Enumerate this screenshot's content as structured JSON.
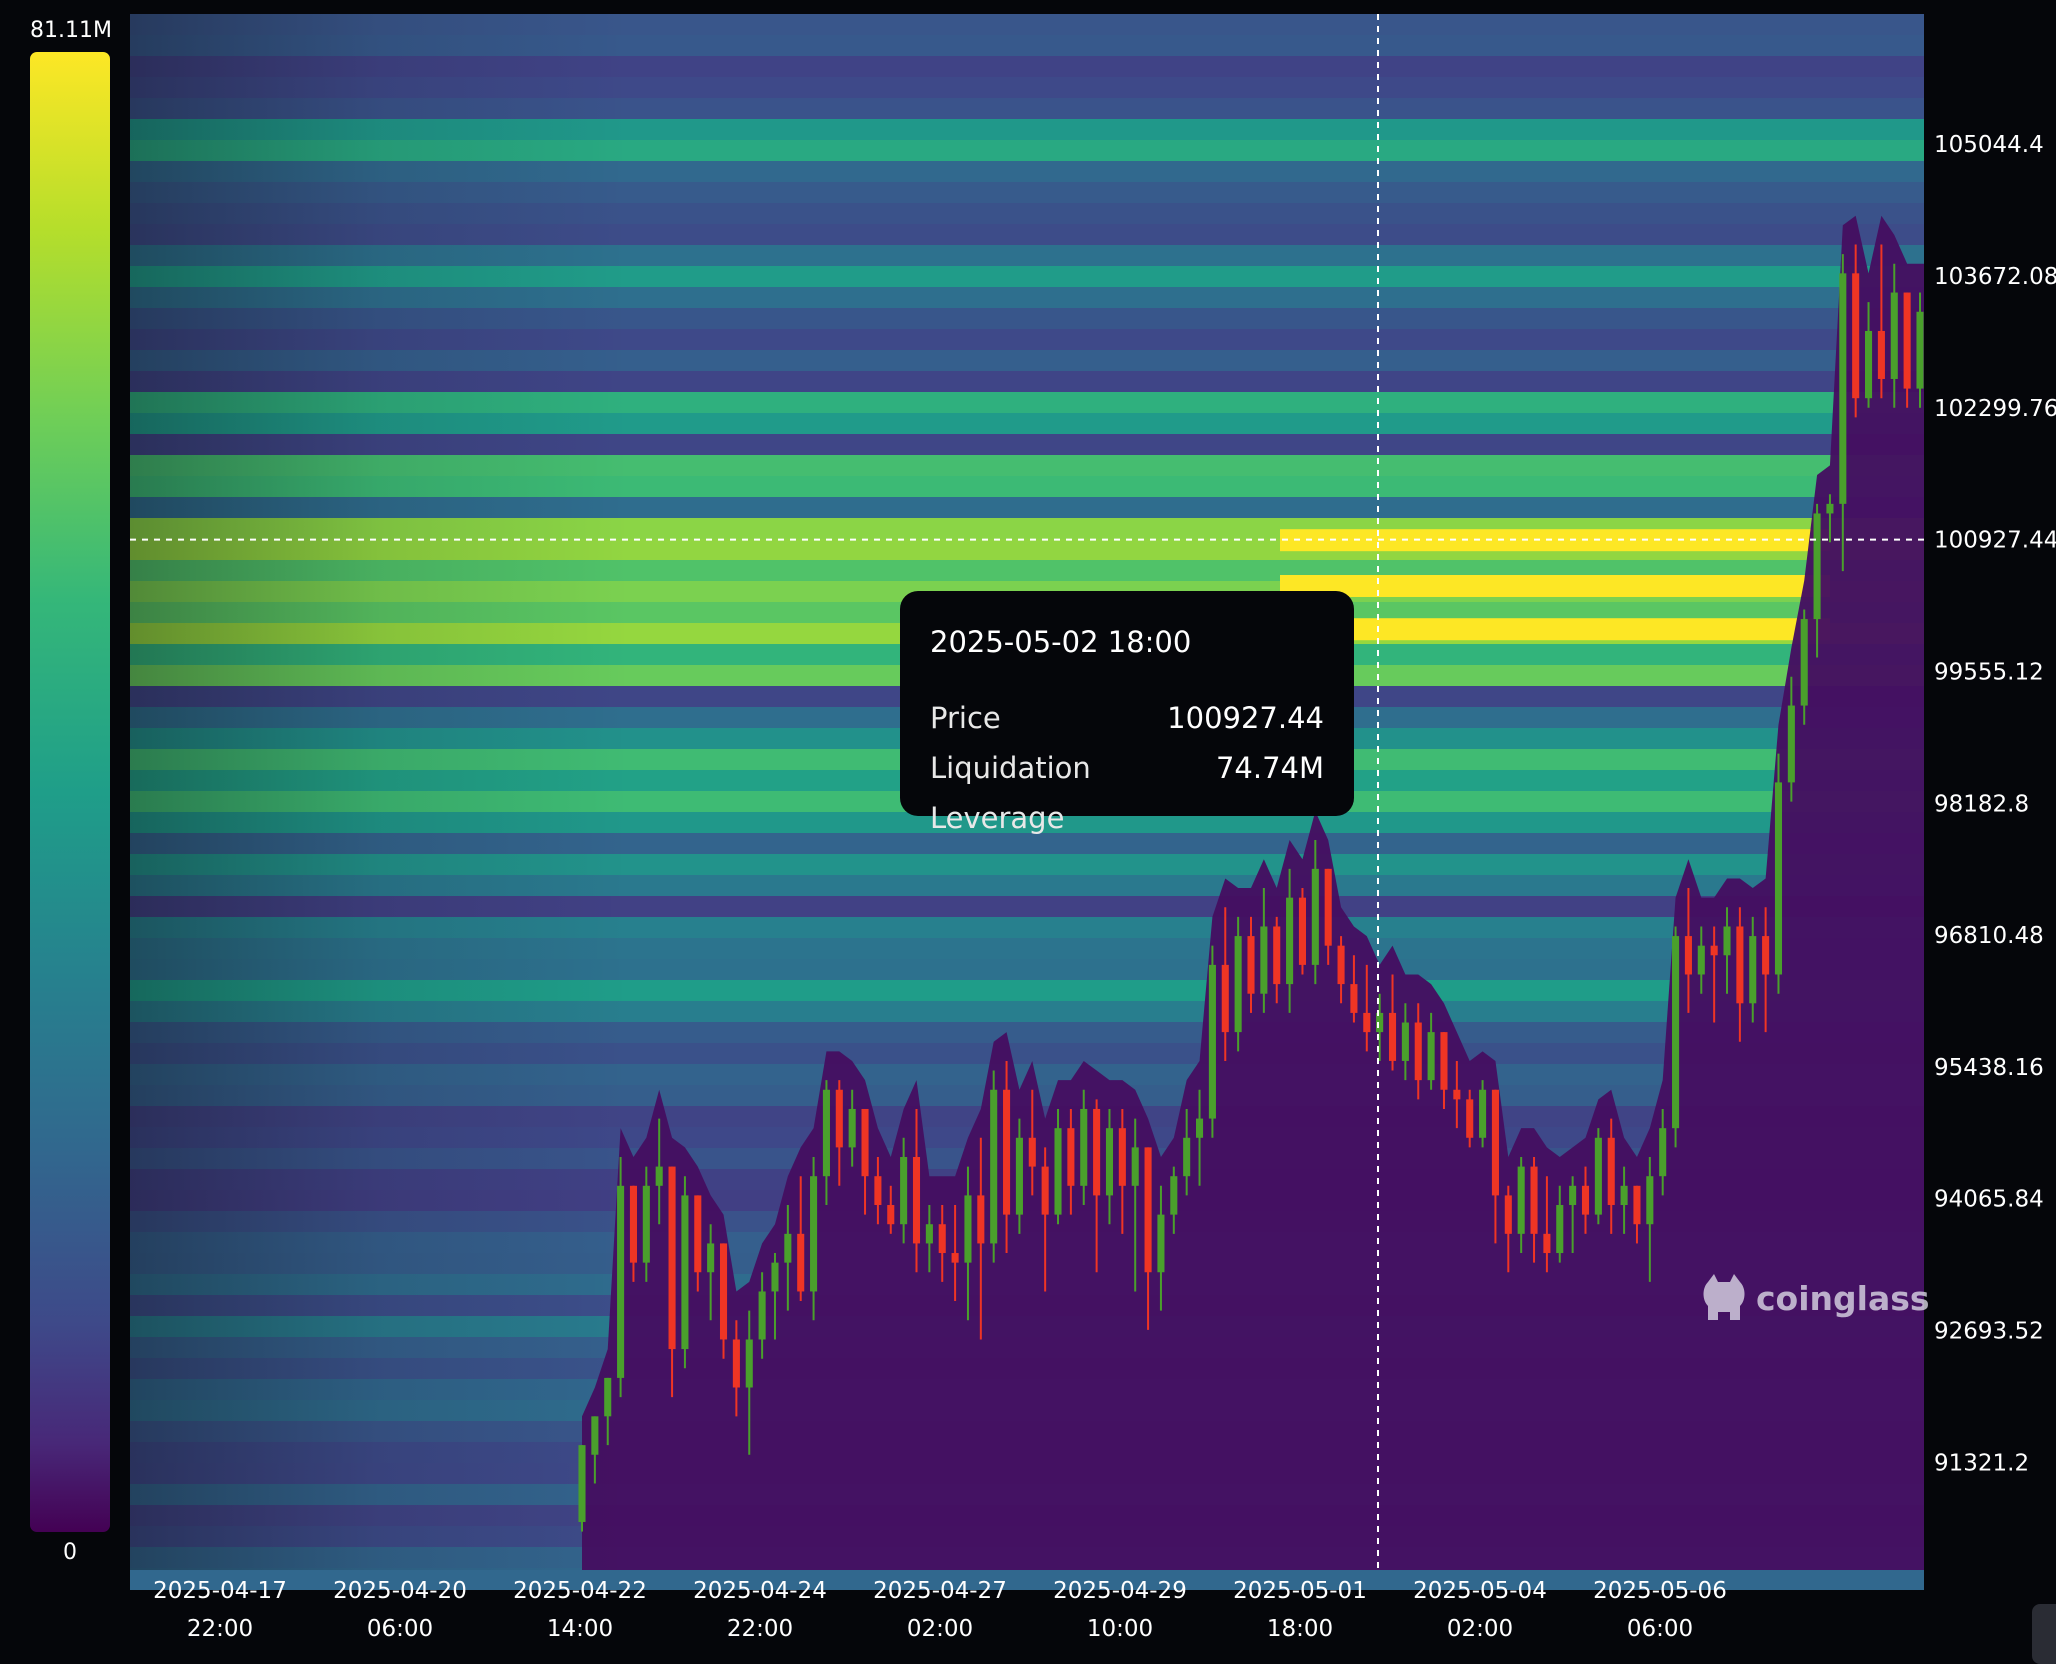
{
  "legend": {
    "max_label": "81.11M",
    "min_label": "0",
    "colors": [
      "#440154",
      "#482878",
      "#3e4989",
      "#31688e",
      "#26828e",
      "#1f9e89",
      "#35b779",
      "#6ece58",
      "#b5de2b",
      "#fde725"
    ]
  },
  "tooltip": {
    "time": "2025-05-02 18:00",
    "price_label": "Price",
    "price_value": "100927.44",
    "leverage_label": "Liquidation Leverage",
    "leverage_value": "74.74M"
  },
  "watermark": {
    "text": "coinglass",
    "icon": "coinglass-logo-icon"
  },
  "chart_data": {
    "type": "heatmap",
    "xlabel": "",
    "ylabel": "",
    "x_tick_labels": [
      [
        "2025-04-17",
        "22:00"
      ],
      [
        "2025-04-20",
        "06:00"
      ],
      [
        "2025-04-22",
        "14:00"
      ],
      [
        "2025-04-24",
        "22:00"
      ],
      [
        "2025-04-27",
        "02:00"
      ],
      [
        "2025-04-29",
        "10:00"
      ],
      [
        "2025-05-01",
        "18:00"
      ],
      [
        "2025-05-04",
        "02:00"
      ],
      [
        "2025-05-06",
        "06:00"
      ]
    ],
    "y_tick_labels": [
      "105044.4",
      "103672.08",
      "102299.76",
      "100927.44",
      "99555.12",
      "98182.8",
      "96810.48",
      "95438.16",
      "94065.84",
      "92693.52",
      "91321.2"
    ],
    "ylim": [
      90200,
      106400
    ],
    "color_scale": {
      "min": 0,
      "max": 81110000,
      "unit": "USD",
      "colormap": "viridis"
    },
    "crosshair": {
      "time": "2025-05-02 18:00",
      "price": 100927.44
    },
    "heat_bands": [
      {
        "price": 105044,
        "level": 0.66
      },
      {
        "price": 103672,
        "level": 0.55
      },
      {
        "price": 102300,
        "level": 0.68
      },
      {
        "price": 101600,
        "level": 0.78
      },
      {
        "price": 100927,
        "level": 0.92
      },
      {
        "price": 100450,
        "level": 0.85
      },
      {
        "price": 100000,
        "level": 0.88
      },
      {
        "price": 99555,
        "level": 0.8
      },
      {
        "price": 98600,
        "level": 0.72
      },
      {
        "price": 98182,
        "level": 0.7
      },
      {
        "price": 97500,
        "level": 0.55
      },
      {
        "price": 96810,
        "level": 0.5
      },
      {
        "price": 96200,
        "level": 0.58
      },
      {
        "price": 92693,
        "level": 0.45
      },
      {
        "price": 91800,
        "level": 0.4
      }
    ],
    "series": [
      {
        "type": "candlestick",
        "values": [
          [
            90700,
            91500,
            90600,
            91500
          ],
          [
            91400,
            91800,
            91100,
            91800
          ],
          [
            91800,
            92200,
            91500,
            92200
          ],
          [
            92200,
            94500,
            92000,
            94200
          ],
          [
            94200,
            94200,
            93200,
            93400
          ],
          [
            93400,
            94400,
            93200,
            94200
          ],
          [
            94200,
            94900,
            93800,
            94400
          ],
          [
            94400,
            94400,
            92000,
            92500
          ],
          [
            92500,
            94300,
            92300,
            94100
          ],
          [
            94100,
            94100,
            93100,
            93300
          ],
          [
            93300,
            93800,
            92800,
            93600
          ],
          [
            93600,
            93600,
            92400,
            92600
          ],
          [
            92600,
            92800,
            91800,
            92100
          ],
          [
            92100,
            92900,
            91400,
            92600
          ],
          [
            92600,
            93300,
            92400,
            93100
          ],
          [
            93100,
            93500,
            92600,
            93400
          ],
          [
            93400,
            94000,
            92900,
            93700
          ],
          [
            93700,
            94300,
            93000,
            93100
          ],
          [
            93100,
            94500,
            92800,
            94300
          ],
          [
            94300,
            95300,
            94000,
            95200
          ],
          [
            95200,
            95300,
            94200,
            94600
          ],
          [
            94600,
            95200,
            94400,
            95000
          ],
          [
            95000,
            95000,
            93900,
            94300
          ],
          [
            94300,
            94500,
            93800,
            94000
          ],
          [
            94000,
            94200,
            93700,
            93800
          ],
          [
            93800,
            94700,
            93600,
            94500
          ],
          [
            94500,
            95000,
            93300,
            93600
          ],
          [
            93600,
            94000,
            93300,
            93800
          ],
          [
            93800,
            94000,
            93200,
            93500
          ],
          [
            93500,
            94000,
            93000,
            93400
          ],
          [
            93400,
            94400,
            92800,
            94100
          ],
          [
            94100,
            94700,
            92600,
            93600
          ],
          [
            93600,
            95400,
            93400,
            95200
          ],
          [
            95200,
            95500,
            93500,
            93900
          ],
          [
            93900,
            94900,
            93700,
            94700
          ],
          [
            94700,
            95200,
            94100,
            94400
          ],
          [
            94400,
            94600,
            93100,
            93900
          ],
          [
            93900,
            95000,
            93800,
            94800
          ],
          [
            94800,
            95000,
            93900,
            94200
          ],
          [
            94200,
            95200,
            94000,
            95000
          ],
          [
            95000,
            95100,
            93300,
            94100
          ],
          [
            94100,
            95000,
            93800,
            94800
          ],
          [
            94800,
            95000,
            93700,
            94200
          ],
          [
            94200,
            94900,
            93100,
            94600
          ],
          [
            94600,
            94600,
            92700,
            93300
          ],
          [
            93300,
            94200,
            92900,
            93900
          ],
          [
            93900,
            94400,
            93700,
            94300
          ],
          [
            94300,
            95000,
            94100,
            94700
          ],
          [
            94700,
            95200,
            94200,
            94900
          ],
          [
            94900,
            96700,
            94700,
            96500
          ],
          [
            96500,
            97100,
            95500,
            95800
          ],
          [
            95800,
            97000,
            95600,
            96800
          ],
          [
            96800,
            97000,
            96000,
            96200
          ],
          [
            96200,
            97300,
            96000,
            96900
          ],
          [
            96900,
            97000,
            96100,
            96300
          ],
          [
            96300,
            97500,
            96000,
            97200
          ],
          [
            97200,
            97300,
            96400,
            96500
          ],
          [
            96500,
            97800,
            96300,
            97500
          ],
          [
            97500,
            97500,
            96500,
            96700
          ],
          [
            96700,
            96800,
            96100,
            96300
          ],
          [
            96300,
            96600,
            95900,
            96000
          ],
          [
            96000,
            96500,
            95600,
            95800
          ],
          [
            95800,
            96200,
            95500,
            96000
          ],
          [
            96000,
            96400,
            95400,
            95500
          ],
          [
            95500,
            96100,
            95300,
            95900
          ],
          [
            95900,
            96100,
            95100,
            95300
          ],
          [
            95300,
            96000,
            95200,
            95800
          ],
          [
            95800,
            95800,
            95000,
            95200
          ],
          [
            95200,
            95500,
            94800,
            95100
          ],
          [
            95100,
            95200,
            94600,
            94700
          ],
          [
            94700,
            95300,
            94600,
            95200
          ],
          [
            95200,
            95200,
            93600,
            94100
          ],
          [
            94100,
            94200,
            93300,
            93700
          ],
          [
            93700,
            94500,
            93500,
            94400
          ],
          [
            94400,
            94500,
            93400,
            93700
          ],
          [
            93700,
            94300,
            93300,
            93500
          ],
          [
            93500,
            94200,
            93400,
            94000
          ],
          [
            94000,
            94300,
            93500,
            94200
          ],
          [
            94200,
            94400,
            93700,
            93900
          ],
          [
            93900,
            94800,
            93800,
            94700
          ],
          [
            94700,
            94900,
            93700,
            94000
          ],
          [
            94000,
            94400,
            93700,
            94200
          ],
          [
            94200,
            94200,
            93600,
            93800
          ],
          [
            93800,
            94500,
            93200,
            94300
          ],
          [
            94300,
            95000,
            94100,
            94800
          ],
          [
            94800,
            96900,
            94600,
            96800
          ],
          [
            96800,
            97300,
            96000,
            96400
          ],
          [
            96400,
            96900,
            96200,
            96700
          ],
          [
            96700,
            96900,
            95900,
            96600
          ],
          [
            96600,
            97100,
            96200,
            96900
          ],
          [
            96900,
            97100,
            95700,
            96100
          ],
          [
            96100,
            97000,
            95900,
            96800
          ],
          [
            96800,
            97100,
            95800,
            96400
          ],
          [
            96400,
            98700,
            96200,
            98400
          ],
          [
            98400,
            99500,
            98200,
            99200
          ],
          [
            99200,
            100200,
            99000,
            100100
          ],
          [
            100100,
            101300,
            99700,
            101200
          ],
          [
            101200,
            101400,
            100900,
            101300
          ],
          [
            101300,
            103900,
            100600,
            103700
          ],
          [
            103700,
            104000,
            102200,
            102400
          ],
          [
            102400,
            103400,
            102300,
            103100
          ],
          [
            103100,
            104000,
            102400,
            102600
          ],
          [
            102600,
            103800,
            102300,
            103500
          ],
          [
            103500,
            103500,
            102300,
            102500
          ],
          [
            102500,
            103500,
            102300,
            103300
          ]
        ]
      }
    ]
  }
}
